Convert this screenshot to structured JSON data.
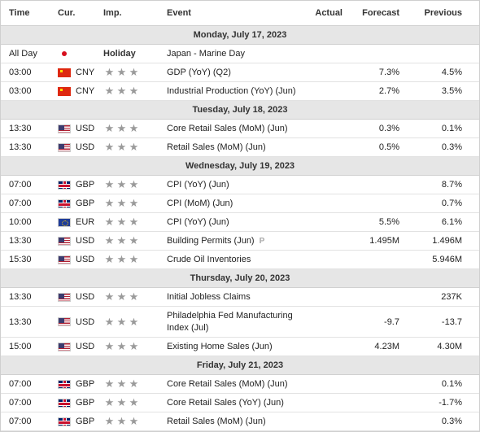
{
  "headers": {
    "time": "Time",
    "cur": "Cur.",
    "imp": "Imp.",
    "event": "Event",
    "actual": "Actual",
    "forecast": "Forecast",
    "previous": "Previous"
  },
  "star_glyph": "★",
  "holiday_label": "Holiday",
  "days": [
    {
      "label": "Monday, July 17, 2023",
      "rows": [
        {
          "time": "All Day",
          "flag": "jp",
          "cur": "",
          "holiday": true,
          "event": "Japan - Marine Day",
          "actual": "",
          "forecast": "",
          "previous": ""
        },
        {
          "time": "03:00",
          "flag": "cn",
          "cur": "CNY",
          "event": "GDP (YoY) (Q2)",
          "actual": "",
          "forecast": "7.3%",
          "previous": "4.5%"
        },
        {
          "time": "03:00",
          "flag": "cn",
          "cur": "CNY",
          "event": "Industrial Production (YoY) (Jun)",
          "actual": "",
          "forecast": "2.7%",
          "previous": "3.5%"
        }
      ]
    },
    {
      "label": "Tuesday, July 18, 2023",
      "rows": [
        {
          "time": "13:30",
          "flag": "us",
          "cur": "USD",
          "event": "Core Retail Sales (MoM) (Jun)",
          "actual": "",
          "forecast": "0.3%",
          "previous": "0.1%"
        },
        {
          "time": "13:30",
          "flag": "us",
          "cur": "USD",
          "event": "Retail Sales (MoM) (Jun)",
          "actual": "",
          "forecast": "0.5%",
          "previous": "0.3%"
        }
      ]
    },
    {
      "label": "Wednesday, July 19, 2023",
      "rows": [
        {
          "time": "07:00",
          "flag": "gb",
          "cur": "GBP",
          "event": "CPI (YoY) (Jun)",
          "actual": "",
          "forecast": "",
          "previous": "8.7%"
        },
        {
          "time": "07:00",
          "flag": "gb",
          "cur": "GBP",
          "event": "CPI (MoM) (Jun)",
          "actual": "",
          "forecast": "",
          "previous": "0.7%"
        },
        {
          "time": "10:00",
          "flag": "eu",
          "cur": "EUR",
          "event": "CPI (YoY) (Jun)",
          "actual": "",
          "forecast": "5.5%",
          "previous": "6.1%"
        },
        {
          "time": "13:30",
          "flag": "us",
          "cur": "USD",
          "event": "Building Permits (Jun)",
          "prelim": "P",
          "actual": "",
          "forecast": "1.495M",
          "previous": "1.496M"
        },
        {
          "time": "15:30",
          "flag": "us",
          "cur": "USD",
          "event": "Crude Oil Inventories",
          "actual": "",
          "forecast": "",
          "previous": "5.946M"
        }
      ]
    },
    {
      "label": "Thursday, July 20, 2023",
      "rows": [
        {
          "time": "13:30",
          "flag": "us",
          "cur": "USD",
          "event": "Initial Jobless Claims",
          "actual": "",
          "forecast": "",
          "previous": "237K"
        },
        {
          "time": "13:30",
          "flag": "us",
          "cur": "USD",
          "event": "Philadelphia Fed Manufacturing Index (Jul)",
          "tall": true,
          "actual": "",
          "forecast": "-9.7",
          "previous": "-13.7"
        },
        {
          "time": "15:00",
          "flag": "us",
          "cur": "USD",
          "event": "Existing Home Sales (Jun)",
          "actual": "",
          "forecast": "4.23M",
          "previous": "4.30M"
        }
      ]
    },
    {
      "label": "Friday, July 21, 2023",
      "rows": [
        {
          "time": "07:00",
          "flag": "gb",
          "cur": "GBP",
          "event": "Core Retail Sales (MoM) (Jun)",
          "actual": "",
          "forecast": "",
          "previous": "0.1%"
        },
        {
          "time": "07:00",
          "flag": "gb",
          "cur": "GBP",
          "event": "Core Retail Sales (YoY) (Jun)",
          "actual": "",
          "forecast": "",
          "previous": "-1.7%"
        },
        {
          "time": "07:00",
          "flag": "gb",
          "cur": "GBP",
          "event": "Retail Sales (MoM) (Jun)",
          "actual": "",
          "forecast": "",
          "previous": "0.3%"
        }
      ]
    }
  ]
}
